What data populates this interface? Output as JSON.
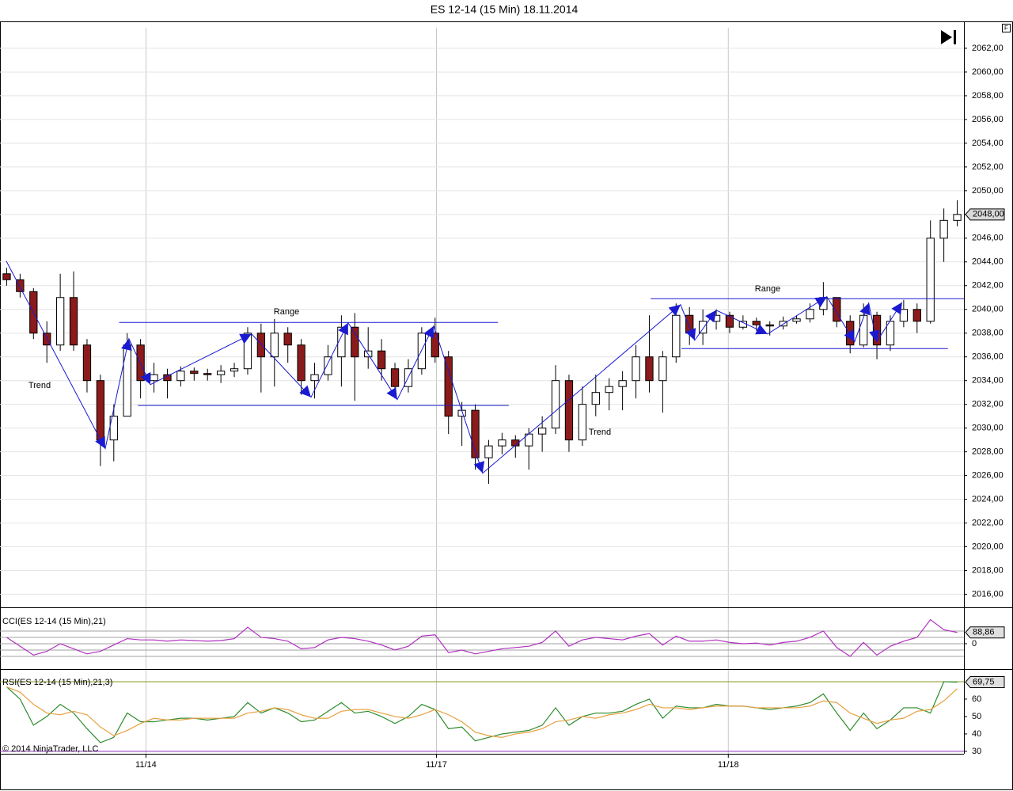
{
  "chart_data": [
    {
      "type": "candlestick",
      "title": "ES 12-14 (15 Min)  18.11.2014",
      "x": [
        0,
        1,
        2,
        3,
        4,
        5,
        6,
        7,
        8,
        9,
        10,
        11,
        12,
        13,
        14,
        15,
        16,
        17,
        18,
        19,
        20,
        21,
        22,
        23,
        24,
        25,
        26,
        27,
        28,
        29,
        30,
        31,
        32,
        33,
        34,
        35,
        36,
        37,
        38,
        39,
        40,
        41,
        42,
        43,
        44,
        45,
        46,
        47,
        48,
        49,
        50,
        51,
        52,
        53,
        54,
        55,
        56,
        57,
        58,
        59,
        60,
        61,
        62,
        63,
        64,
        65,
        66,
        67,
        68,
        69,
        70,
        71
      ],
      "open": [
        2043,
        2042.5,
        2041.5,
        2038,
        2037,
        2041,
        2037,
        2034,
        2029,
        2031,
        2037,
        2034,
        2034.5,
        2034,
        2034.8,
        2034.6,
        2034.5,
        2034.8,
        2035,
        2038,
        2036,
        2038,
        2037,
        2034,
        2034.5,
        2036,
        2038.5,
        2036,
        2036.5,
        2035,
        2033.5,
        2035,
        2038,
        2036,
        2031,
        2031.5,
        2027.5,
        2028.5,
        2029,
        2028.5,
        2029.5,
        2030,
        2034,
        2029,
        2032,
        2033,
        2033.5,
        2034,
        2036,
        2034,
        2036,
        2039.5,
        2038,
        2039,
        2039.5,
        2038.5,
        2039,
        2038.7,
        2038.6,
        2039,
        2039.2,
        2040,
        2041,
        2039,
        2037,
        2039.5,
        2037,
        2039,
        2040,
        2039,
        2046,
        2047.5
      ],
      "high": [
        2043.5,
        2043,
        2041.8,
        2039,
        2043,
        2043.2,
        2037.5,
        2034.5,
        2032,
        2038,
        2037.5,
        2035.5,
        2035,
        2035.2,
        2035.1,
        2035,
        2035.3,
        2035.5,
        2038.5,
        2038.8,
        2039.2,
        2038.5,
        2037.5,
        2035.5,
        2037,
        2039.5,
        2039.7,
        2038.5,
        2037.5,
        2035.5,
        2035.8,
        2038.5,
        2039.3,
        2036.5,
        2032.2,
        2032,
        2029,
        2029.6,
        2029.4,
        2030,
        2031,
        2035.3,
        2034.5,
        2033.5,
        2034.5,
        2034.2,
        2034.8,
        2037,
        2039.5,
        2036.5,
        2040.5,
        2040.2,
        2040,
        2040,
        2039.8,
        2039.5,
        2039.3,
        2039,
        2039.4,
        2039.5,
        2040.5,
        2042.3,
        2041,
        2039.5,
        2040.5,
        2039.8,
        2039.5,
        2040.8,
        2040.5,
        2047.5,
        2048.5,
        2049.2
      ],
      "low": [
        2042,
        2041,
        2037.5,
        2035.5,
        2036.5,
        2036.5,
        2033,
        2026.8,
        2027.2,
        2031,
        2032.5,
        2033,
        2032.5,
        2033.5,
        2034,
        2034,
        2033.8,
        2034.3,
        2034.5,
        2033,
        2033.5,
        2035.5,
        2032.8,
        2032.5,
        2034,
        2033.5,
        2032.3,
        2035,
        2034,
        2032.5,
        2033,
        2034.5,
        2035.5,
        2029.5,
        2028.5,
        2026.5,
        2025.3,
        2027.8,
        2027.5,
        2026.5,
        2028,
        2029.5,
        2028,
        2028.5,
        2031,
        2031.5,
        2031.5,
        2032.5,
        2033,
        2031.3,
        2035.5,
        2037,
        2037,
        2038.3,
        2038,
        2038.3,
        2038.2,
        2037.8,
        2038.3,
        2038.8,
        2038.9,
        2039.5,
        2038.5,
        2036.3,
        2036.8,
        2035.8,
        2036.5,
        2038.5,
        2038,
        2038.8,
        2044,
        2047
      ],
      "close": [
        2042.5,
        2041.5,
        2038,
        2037,
        2041,
        2037,
        2034,
        2029,
        2031,
        2037,
        2034,
        2034.5,
        2034,
        2034.8,
        2034.6,
        2034.5,
        2034.8,
        2035,
        2038,
        2036,
        2038,
        2037,
        2034,
        2034.5,
        2036,
        2038.5,
        2036,
        2036.5,
        2035,
        2033.5,
        2035,
        2038,
        2036,
        2031,
        2031.5,
        2027.5,
        2028.5,
        2029,
        2028.5,
        2029.5,
        2030,
        2034,
        2029,
        2032,
        2033,
        2033.5,
        2034,
        2036,
        2034,
        2036,
        2039.5,
        2038,
        2039,
        2039.5,
        2038.5,
        2039,
        2038.7,
        2038.6,
        2039,
        2039.2,
        2040,
        2041,
        2039,
        2037,
        2039.5,
        2037,
        2039,
        2040,
        2039,
        2046,
        2047.5,
        2048
      ],
      "up_color": "#ffffff",
      "down_color": "#8b1a1a",
      "last_label": "2048,00",
      "xlim": [
        -0.5,
        71.5
      ],
      "xticks": [
        {
          "value": 10.4,
          "label": "11/14"
        },
        {
          "value": 32.1,
          "label": "11/17"
        },
        {
          "value": 53.9,
          "label": "11/18"
        }
      ],
      "ylim": [
        2014.9,
        2064.2
      ],
      "yticks": [
        {
          "value": 2016,
          "label": "2016,00"
        },
        {
          "value": 2018,
          "label": "2018,00"
        },
        {
          "value": 2020,
          "label": "2020,00"
        },
        {
          "value": 2022,
          "label": "2022,00"
        },
        {
          "value": 2024,
          "label": "2024,00"
        },
        {
          "value": 2026,
          "label": "2026,00"
        },
        {
          "value": 2028,
          "label": "2028,00"
        },
        {
          "value": 2030,
          "label": "2030,00"
        },
        {
          "value": 2032,
          "label": "2032,00"
        },
        {
          "value": 2034,
          "label": "2034,00"
        },
        {
          "value": 2036,
          "label": "2036,00"
        },
        {
          "value": 2038,
          "label": "2038,00"
        },
        {
          "value": 2040,
          "label": "2040,00"
        },
        {
          "value": 2042,
          "label": "2042,00"
        },
        {
          "value": 2044,
          "label": "2044,00"
        },
        {
          "value": 2046,
          "label": "2046,00"
        },
        {
          "value": 2048,
          "label": "2048,00"
        },
        {
          "value": 2050,
          "label": "2050,00"
        },
        {
          "value": 2052,
          "label": "2052,00"
        },
        {
          "value": 2054,
          "label": "2054,00"
        },
        {
          "value": 2056,
          "label": "2056,00"
        },
        {
          "value": 2058,
          "label": "2058,00"
        },
        {
          "value": 2060,
          "label": "2060,00"
        },
        {
          "value": 2062,
          "label": "2062,00"
        }
      ],
      "grid": true,
      "drawing_color": "#1a1ad0",
      "range_lines": [
        {
          "x": [
            8.4,
            36.7
          ],
          "y": 2038.9
        },
        {
          "x": [
            9.8,
            37.5
          ],
          "y": 2031.9
        },
        {
          "x": [
            48.1,
            71.5
          ],
          "y": 2040.9
        },
        {
          "x": [
            50.4,
            70.3
          ],
          "y": 2036.7
        }
      ],
      "zigzag": {
        "x": [
          -0.03,
          7.36,
          9.13,
          10.73,
          18.29,
          22.73,
          25.5,
          29.17,
          31.89,
          35.55,
          50.33,
          51.39,
          52.99,
          56.83,
          61.26,
          63.33,
          64.39,
          64.98,
          66.88
        ],
        "y": [
          2044.07,
          2028.27,
          2037.53,
          2033.67,
          2037.93,
          2032.6,
          2038.87,
          2032.4,
          2038.6,
          2026.2,
          2040.4,
          2037.4,
          2039.93,
          2037.93,
          2041.07,
          2037.27,
          2040.53,
          2037.27,
          2040.6
        ]
      },
      "annotations": [
        "Trend",
        "Range",
        "Trend",
        "Range"
      ]
    },
    {
      "type": "line",
      "title": "CCI(ES 12-14 (15 Min),21)",
      "series": [
        {
          "color": "#b030c0",
          "values": [
            50,
            -20,
            -90,
            -60,
            0,
            -40,
            -80,
            -60,
            -10,
            40,
            30,
            30,
            20,
            30,
            25,
            20,
            25,
            40,
            130,
            50,
            40,
            20,
            -40,
            -30,
            30,
            50,
            40,
            20,
            -10,
            -50,
            -20,
            60,
            70,
            -70,
            -50,
            -80,
            -60,
            -40,
            -30,
            -20,
            10,
            100,
            -20,
            30,
            50,
            40,
            30,
            60,
            80,
            -10,
            60,
            20,
            20,
            30,
            10,
            0,
            5,
            -10,
            10,
            20,
            50,
            100,
            -30,
            -100,
            10,
            -90,
            -20,
            20,
            50,
            190,
            110,
            88.86
          ]
        }
      ],
      "last_label": "88,86",
      "ylim": [
        -200,
        281
      ],
      "yticks": [
        0
      ],
      "levels": [
        -100,
        -50,
        50,
        100
      ],
      "level_color": "#a0a0a0"
    },
    {
      "type": "line",
      "title": "RSI(ES 12-14 (15 Min),21,3)",
      "series": [
        {
          "color": "#2e8b2e",
          "values": [
            67,
            60,
            45,
            50,
            57,
            52,
            43,
            35,
            38,
            52,
            47,
            47,
            48,
            49,
            49,
            48,
            49,
            50,
            58,
            52,
            55,
            52,
            47,
            48,
            53,
            58,
            52,
            53,
            50,
            46,
            50,
            57,
            54,
            43,
            44,
            36,
            38,
            40,
            41,
            42,
            45,
            55,
            45,
            50,
            52,
            52,
            53,
            57,
            60,
            49,
            56,
            55,
            55,
            57,
            56,
            56,
            55,
            54,
            55,
            56,
            58,
            63,
            52,
            42,
            52,
            43,
            48,
            55,
            55,
            52,
            70,
            69.75
          ]
        },
        {
          "color": "#e8a040",
          "values": [
            67,
            64,
            57,
            52,
            51,
            53,
            51,
            44,
            39,
            42,
            46,
            49,
            48,
            48,
            49,
            49,
            49,
            49,
            52,
            53,
            55,
            54,
            51,
            49,
            49,
            53,
            54,
            54,
            52,
            50,
            49,
            51,
            54,
            51,
            47,
            41,
            39,
            38,
            40,
            41,
            43,
            47,
            48,
            50,
            49,
            51,
            52,
            54,
            57,
            55,
            55,
            54,
            55,
            56,
            56,
            56,
            55,
            55,
            55,
            55,
            56,
            59,
            58,
            52,
            49,
            46,
            48,
            49,
            53,
            54,
            59,
            66
          ]
        }
      ],
      "last_label": "69,75",
      "ylim": [
        28.6,
        76.8
      ],
      "yticks": [
        30,
        40,
        50,
        60
      ],
      "levels": [
        30,
        70
      ],
      "level_colors": [
        "#9030c0",
        "#8a9a20"
      ]
    }
  ],
  "footer": "© 2014 NinjaTrader, LLC"
}
